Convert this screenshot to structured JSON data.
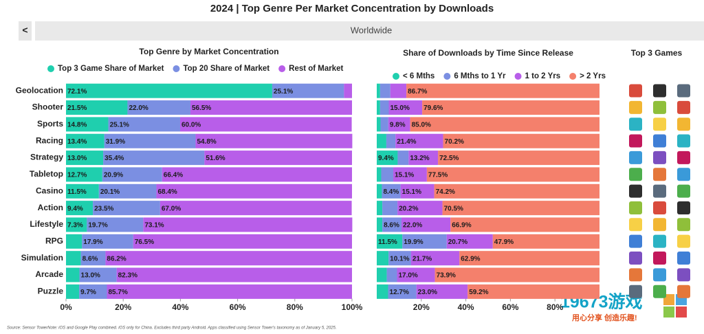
{
  "header": {
    "title": "2024 | Top Genre Per Market Concentration by Downloads",
    "region": "Worldwide",
    "back": "<"
  },
  "chart_data": [
    {
      "type": "bar",
      "orientation": "horizontal",
      "stacked": true,
      "grid": false,
      "title": "Top Genre by Market Concentration",
      "categories": [
        "Geolocation",
        "Shooter",
        "Sports",
        "Racing",
        "Strategy",
        "Tabletop",
        "Casino",
        "Action",
        "Lifestyle",
        "RPG",
        "Simulation",
        "Arcade",
        "Puzzle"
      ],
      "xlim": [
        0,
        100
      ],
      "xticks": [
        {
          "value": 0,
          "label": "0%"
        },
        {
          "value": 20,
          "label": "20%"
        },
        {
          "value": 40,
          "label": "40%"
        },
        {
          "value": 60,
          "label": "60%"
        },
        {
          "value": 80,
          "label": "80%"
        },
        {
          "value": 100,
          "label": "100%"
        }
      ],
      "series": [
        {
          "name": "Top 3 Game Share of Market",
          "color": "#1fcfae",
          "values": [
            72.1,
            21.5,
            14.8,
            13.4,
            13.0,
            12.7,
            11.5,
            9.4,
            7.3,
            5.6,
            5.2,
            4.7,
            4.6
          ],
          "value_labels": [
            "72.1%",
            "21.5%",
            "14.8%",
            "13.4%",
            "13.0%",
            "12.7%",
            "11.5%",
            "9.4%",
            "7.3%",
            null,
            null,
            null,
            null
          ]
        },
        {
          "name": "Top 20 Share of Market",
          "color": "#7b8fe2",
          "values": [
            25.1,
            22.0,
            25.1,
            31.9,
            35.4,
            20.9,
            20.1,
            23.5,
            19.7,
            17.9,
            8.6,
            13.0,
            9.7
          ],
          "value_labels": [
            "25.1%",
            "22.0%",
            "25.1%",
            "31.9%",
            "35.4%",
            "20.9%",
            "20.1%",
            "23.5%",
            "19.7%",
            "17.9%",
            "8.6%",
            "13.0%",
            "9.7%"
          ]
        },
        {
          "name": "Rest of Market",
          "color": "#b85ee9",
          "values": [
            2.8,
            56.5,
            60.0,
            54.8,
            51.6,
            66.4,
            68.4,
            67.0,
            73.1,
            76.5,
            86.2,
            82.3,
            85.7
          ],
          "value_labels": [
            null,
            "56.5%",
            "60.0%",
            "54.8%",
            "51.6%",
            "66.4%",
            "68.4%",
            "67.0%",
            "73.1%",
            "76.5%",
            "86.2%",
            "82.3%",
            "85.7%"
          ]
        }
      ]
    },
    {
      "type": "bar",
      "orientation": "horizontal",
      "stacked": true,
      "grid": false,
      "title": "Share of Downloads by Time Since Release",
      "xlim": [
        0,
        100
      ],
      "xticks": [
        {
          "value": 20,
          "label": "20%"
        },
        {
          "value": 40,
          "label": "40%"
        },
        {
          "value": 60,
          "label": "60%"
        },
        {
          "value": 80,
          "label": "80%"
        }
      ],
      "series": [
        {
          "name": "< 6 Mths",
          "color": "#1fcfae",
          "values": [
            1.5,
            1.5,
            1.7,
            4.3,
            9.4,
            2.0,
            2.3,
            2.5,
            2.5,
            11.5,
            5.3,
            4.5,
            5.1
          ],
          "value_labels": [
            null,
            null,
            null,
            null,
            "9.4%",
            null,
            null,
            null,
            null,
            "11.5%",
            null,
            null,
            null
          ]
        },
        {
          "name": "6 Mths to 1 Yr",
          "color": "#7b8fe2",
          "values": [
            4.6,
            3.9,
            3.5,
            4.1,
            4.9,
            5.4,
            8.4,
            6.8,
            8.6,
            19.9,
            10.1,
            4.6,
            12.7
          ],
          "value_labels": [
            null,
            null,
            null,
            null,
            null,
            null,
            "8.4%",
            null,
            "8.6%",
            "19.9%",
            "10.1%",
            null,
            "12.7%"
          ]
        },
        {
          "name": "1 to 2 Yrs",
          "color": "#b85ee9",
          "values": [
            7.2,
            15.0,
            9.8,
            21.4,
            13.2,
            15.1,
            15.1,
            20.2,
            22.0,
            20.7,
            21.7,
            17.0,
            23.0
          ],
          "value_labels": [
            null,
            "15.0%",
            "9.8%",
            "21.4%",
            "13.2%",
            "15.1%",
            "15.1%",
            "20.2%",
            "22.0%",
            "20.7%",
            "21.7%",
            "17.0%",
            "23.0%"
          ]
        },
        {
          "name": "> 2 Yrs",
          "color": "#f4806c",
          "values": [
            86.7,
            79.6,
            85.0,
            70.2,
            72.5,
            77.5,
            74.2,
            70.5,
            66.9,
            47.9,
            62.9,
            73.9,
            59.2
          ],
          "value_labels": [
            "86.7%",
            "79.6%",
            "85.0%",
            "70.2%",
            "72.5%",
            "77.5%",
            "74.2%",
            "70.5%",
            "66.9%",
            "47.9%",
            "62.9%",
            "73.9%",
            "59.2%"
          ]
        }
      ]
    }
  ],
  "side_panel": {
    "title": "Top 3 Games"
  },
  "source": "Source: Sensor TowerNote: iOS and Google Play combined. iOS only for China. Excludes third party Android. Apps classified using Sensor Tower's taxonomy as of January 5, 2025.",
  "watermark": {
    "brand": "19673游戏",
    "slogan": "用心分享 创造乐趣!"
  }
}
